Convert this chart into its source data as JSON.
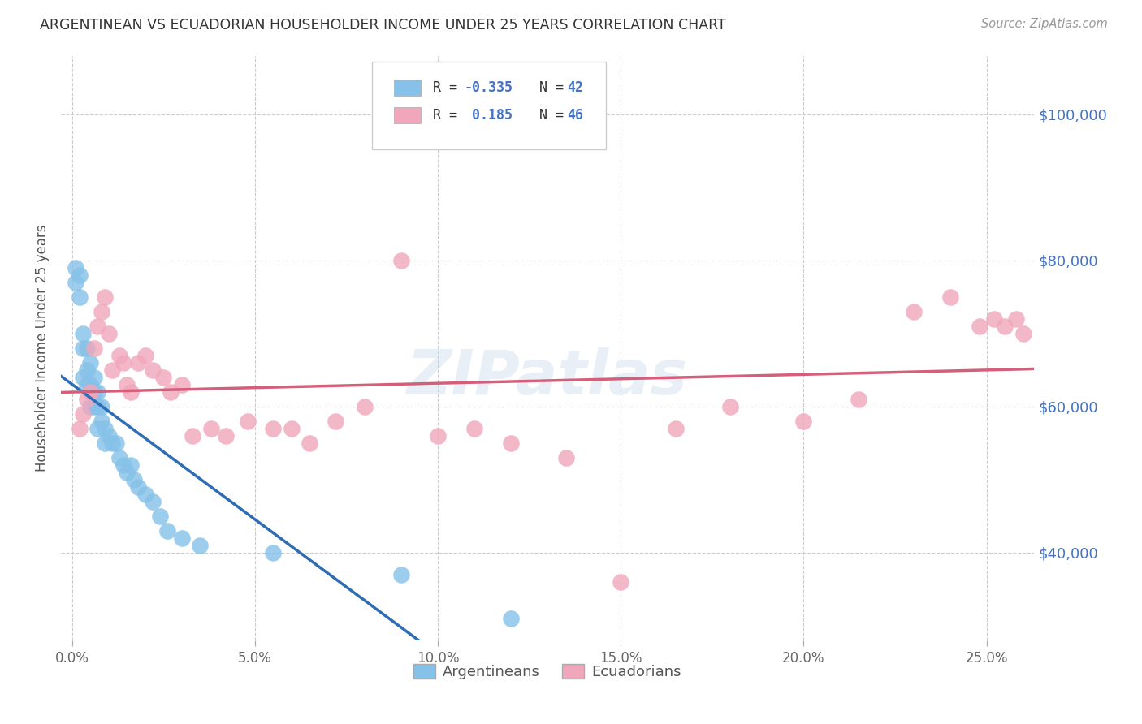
{
  "title": "ARGENTINEAN VS ECUADORIAN HOUSEHOLDER INCOME UNDER 25 YEARS CORRELATION CHART",
  "source": "Source: ZipAtlas.com",
  "ylabel": "Householder Income Under 25 years",
  "xlabel_ticks": [
    "0.0%",
    "5.0%",
    "10.0%",
    "15.0%",
    "20.0%",
    "25.0%"
  ],
  "xlabel_vals": [
    0.0,
    0.05,
    0.1,
    0.15,
    0.2,
    0.25
  ],
  "ylabel_ticks": [
    "$40,000",
    "$60,000",
    "$80,000",
    "$100,000"
  ],
  "ylabel_vals": [
    40000,
    60000,
    80000,
    100000
  ],
  "ylim": [
    28000,
    108000
  ],
  "xlim": [
    -0.003,
    0.263
  ],
  "argentinean_R": -0.335,
  "argentinean_N": 42,
  "ecuadorian_R": 0.185,
  "ecuadorian_N": 46,
  "arg_color": "#85C1E8",
  "ecu_color": "#F1A7BB",
  "arg_line_color": "#2E6DB4",
  "ecu_line_color": "#D45F7A",
  "watermark": "ZIPatlas",
  "background_color": "#FFFFFF",
  "grid_color": "#CCCCCC",
  "arg_line_solid_end": 0.13,
  "arg_line_dash_start": 0.13,
  "argentinean_x": [
    0.001,
    0.001,
    0.002,
    0.002,
    0.003,
    0.003,
    0.003,
    0.004,
    0.004,
    0.004,
    0.005,
    0.005,
    0.005,
    0.005,
    0.006,
    0.006,
    0.006,
    0.007,
    0.007,
    0.007,
    0.008,
    0.008,
    0.009,
    0.009,
    0.01,
    0.011,
    0.012,
    0.013,
    0.014,
    0.015,
    0.016,
    0.017,
    0.018,
    0.02,
    0.022,
    0.024,
    0.026,
    0.03,
    0.035,
    0.055,
    0.09,
    0.12
  ],
  "argentinean_y": [
    79000,
    77000,
    78000,
    75000,
    70000,
    68000,
    64000,
    68000,
    65000,
    63000,
    66000,
    63000,
    62000,
    60000,
    64000,
    62000,
    60000,
    62000,
    60000,
    57000,
    60000,
    58000,
    57000,
    55000,
    56000,
    55000,
    55000,
    53000,
    52000,
    51000,
    52000,
    50000,
    49000,
    48000,
    47000,
    45000,
    43000,
    42000,
    41000,
    40000,
    37000,
    31000
  ],
  "ecuadorian_x": [
    0.002,
    0.003,
    0.004,
    0.005,
    0.006,
    0.007,
    0.008,
    0.009,
    0.01,
    0.011,
    0.013,
    0.014,
    0.015,
    0.016,
    0.018,
    0.02,
    0.022,
    0.025,
    0.027,
    0.03,
    0.033,
    0.038,
    0.042,
    0.048,
    0.055,
    0.06,
    0.065,
    0.072,
    0.08,
    0.09,
    0.1,
    0.11,
    0.12,
    0.135,
    0.15,
    0.165,
    0.18,
    0.2,
    0.215,
    0.23,
    0.24,
    0.248,
    0.252,
    0.255,
    0.258,
    0.26
  ],
  "ecuadorian_y": [
    57000,
    59000,
    61000,
    62000,
    68000,
    71000,
    73000,
    75000,
    70000,
    65000,
    67000,
    66000,
    63000,
    62000,
    66000,
    67000,
    65000,
    64000,
    62000,
    63000,
    56000,
    57000,
    56000,
    58000,
    57000,
    57000,
    55000,
    58000,
    60000,
    80000,
    56000,
    57000,
    55000,
    53000,
    36000,
    57000,
    60000,
    58000,
    61000,
    73000,
    75000,
    71000,
    72000,
    71000,
    72000,
    70000
  ]
}
